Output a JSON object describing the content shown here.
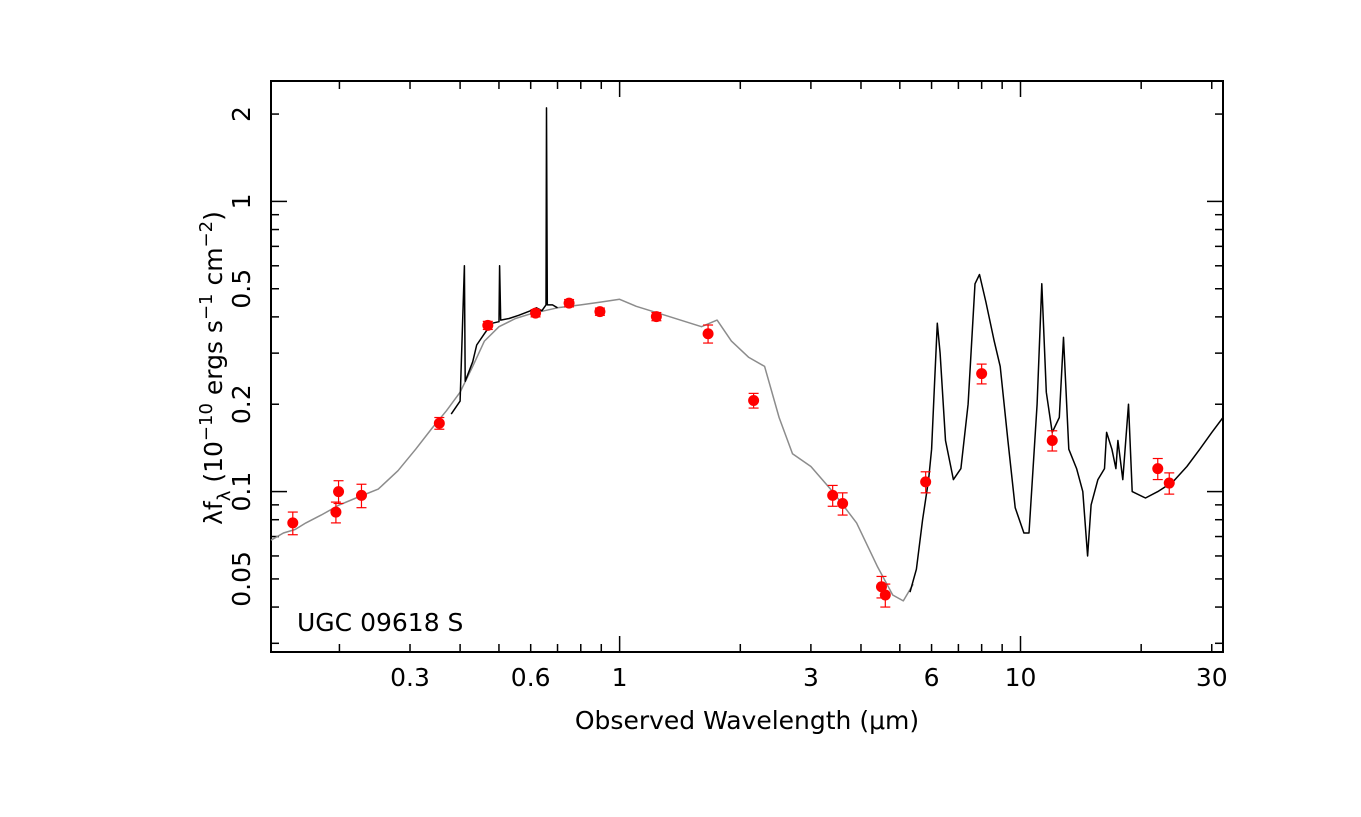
{
  "chart_data": {
    "type": "scatter",
    "xlabel": "Observed Wavelength (μm)",
    "ylabel_parts": {
      "lambda": "λ",
      "f": "f",
      "f_sub": "λ",
      "open": " (10",
      "exp1": "−10",
      "mid": " ergs s",
      "exp2": "−1",
      "cm": " cm",
      "exp3": "−2",
      "close": ")"
    },
    "annotation": "UGC 09618 S",
    "x_scale": "log",
    "y_scale": "log",
    "xlim": [
      0.135,
      32
    ],
    "ylim": [
      0.028,
      2.6
    ],
    "x_ticks": [
      {
        "v": 0.3,
        "label": "0.3"
      },
      {
        "v": 0.6,
        "label": "0.6"
      },
      {
        "v": 1,
        "label": "1"
      },
      {
        "v": 3,
        "label": "3"
      },
      {
        "v": 6,
        "label": "6"
      },
      {
        "v": 10,
        "label": "10"
      },
      {
        "v": 30,
        "label": "30"
      }
    ],
    "y_ticks": [
      {
        "v": 0.05,
        "label": "0.05"
      },
      {
        "v": 0.1,
        "label": "0.1"
      },
      {
        "v": 0.2,
        "label": "0.2"
      },
      {
        "v": 0.5,
        "label": "0.5"
      },
      {
        "v": 1,
        "label": "1"
      },
      {
        "v": 2,
        "label": "2"
      }
    ],
    "colors": {
      "frame": "#000000",
      "points": "#ff0000",
      "model": "#8c8c8c",
      "spectrum": "#000000"
    },
    "photometry": [
      {
        "x": 0.153,
        "y": 0.078,
        "err": 0.007
      },
      {
        "x": 0.196,
        "y": 0.085,
        "err": 0.007
      },
      {
        "x": 0.199,
        "y": 0.1,
        "err": 0.009
      },
      {
        "x": 0.227,
        "y": 0.097,
        "err": 0.009
      },
      {
        "x": 0.355,
        "y": 0.172,
        "err": 0.008
      },
      {
        "x": 0.469,
        "y": 0.374,
        "err": 0.012
      },
      {
        "x": 0.617,
        "y": 0.412,
        "err": 0.012
      },
      {
        "x": 0.748,
        "y": 0.446,
        "err": 0.013
      },
      {
        "x": 0.893,
        "y": 0.417,
        "err": 0.012
      },
      {
        "x": 1.235,
        "y": 0.401,
        "err": 0.013
      },
      {
        "x": 1.662,
        "y": 0.35,
        "err": 0.025
      },
      {
        "x": 2.159,
        "y": 0.206,
        "err": 0.012
      },
      {
        "x": 3.4,
        "y": 0.097,
        "err": 0.008
      },
      {
        "x": 3.6,
        "y": 0.091,
        "err": 0.008
      },
      {
        "x": 4.5,
        "y": 0.047,
        "err": 0.004
      },
      {
        "x": 4.6,
        "y": 0.044,
        "err": 0.004
      },
      {
        "x": 5.8,
        "y": 0.108,
        "err": 0.009
      },
      {
        "x": 8.0,
        "y": 0.255,
        "err": 0.02
      },
      {
        "x": 12.0,
        "y": 0.15,
        "err": 0.012
      },
      {
        "x": 22.0,
        "y": 0.12,
        "err": 0.01
      },
      {
        "x": 23.5,
        "y": 0.107,
        "err": 0.009
      }
    ],
    "model_sed": [
      [
        0.135,
        0.068
      ],
      [
        0.145,
        0.072
      ],
      [
        0.155,
        0.074
      ],
      [
        0.165,
        0.078
      ],
      [
        0.18,
        0.083
      ],
      [
        0.2,
        0.09
      ],
      [
        0.22,
        0.095
      ],
      [
        0.25,
        0.102
      ],
      [
        0.28,
        0.118
      ],
      [
        0.31,
        0.14
      ],
      [
        0.34,
        0.165
      ],
      [
        0.37,
        0.19
      ],
      [
        0.4,
        0.22
      ],
      [
        0.43,
        0.27
      ],
      [
        0.46,
        0.33
      ],
      [
        0.5,
        0.37
      ],
      [
        0.55,
        0.395
      ],
      [
        0.6,
        0.41
      ],
      [
        0.7,
        0.43
      ],
      [
        0.8,
        0.44
      ],
      [
        0.9,
        0.45
      ],
      [
        1.0,
        0.46
      ],
      [
        1.1,
        0.435
      ],
      [
        1.3,
        0.405
      ],
      [
        1.6,
        0.37
      ],
      [
        1.75,
        0.39
      ],
      [
        1.9,
        0.33
      ],
      [
        2.1,
        0.29
      ],
      [
        2.3,
        0.27
      ],
      [
        2.5,
        0.18
      ],
      [
        2.7,
        0.135
      ],
      [
        3.0,
        0.122
      ],
      [
        3.4,
        0.1
      ],
      [
        3.9,
        0.078
      ],
      [
        4.4,
        0.055
      ],
      [
        4.8,
        0.044
      ],
      [
        5.1,
        0.042
      ],
      [
        5.4,
        0.048
      ]
    ],
    "optical_spectrum": [
      [
        0.38,
        0.185
      ],
      [
        0.4,
        0.205
      ],
      [
        0.41,
        0.6
      ],
      [
        0.412,
        0.24
      ],
      [
        0.43,
        0.28
      ],
      [
        0.44,
        0.32
      ],
      [
        0.46,
        0.35
      ],
      [
        0.48,
        0.38
      ],
      [
        0.5,
        0.385
      ],
      [
        0.502,
        0.6
      ],
      [
        0.505,
        0.39
      ],
      [
        0.53,
        0.395
      ],
      [
        0.56,
        0.405
      ],
      [
        0.6,
        0.42
      ],
      [
        0.62,
        0.43
      ],
      [
        0.64,
        0.42
      ],
      [
        0.655,
        0.44
      ],
      [
        0.657,
        2.1
      ],
      [
        0.66,
        0.44
      ],
      [
        0.68,
        0.44
      ],
      [
        0.7,
        0.43
      ]
    ],
    "ir_spectrum": [
      [
        5.3,
        0.045
      ],
      [
        5.5,
        0.054
      ],
      [
        5.7,
        0.08
      ],
      [
        5.9,
        0.11
      ],
      [
        6.0,
        0.14
      ],
      [
        6.1,
        0.23
      ],
      [
        6.2,
        0.38
      ],
      [
        6.3,
        0.3
      ],
      [
        6.5,
        0.15
      ],
      [
        6.8,
        0.11
      ],
      [
        7.1,
        0.12
      ],
      [
        7.4,
        0.2
      ],
      [
        7.7,
        0.52
      ],
      [
        7.9,
        0.56
      ],
      [
        8.2,
        0.45
      ],
      [
        8.6,
        0.33
      ],
      [
        8.9,
        0.27
      ],
      [
        9.3,
        0.15
      ],
      [
        9.7,
        0.088
      ],
      [
        10.2,
        0.072
      ],
      [
        10.5,
        0.072
      ],
      [
        11.0,
        0.2
      ],
      [
        11.3,
        0.52
      ],
      [
        11.6,
        0.22
      ],
      [
        12.0,
        0.16
      ],
      [
        12.5,
        0.18
      ],
      [
        12.8,
        0.34
      ],
      [
        13.2,
        0.14
      ],
      [
        13.8,
        0.12
      ],
      [
        14.3,
        0.1
      ],
      [
        14.7,
        0.06
      ],
      [
        15.0,
        0.09
      ],
      [
        15.6,
        0.11
      ],
      [
        16.2,
        0.12
      ],
      [
        16.4,
        0.16
      ],
      [
        16.9,
        0.14
      ],
      [
        17.3,
        0.12
      ],
      [
        17.5,
        0.15
      ],
      [
        18.0,
        0.11
      ],
      [
        18.6,
        0.2
      ],
      [
        19.0,
        0.1
      ],
      [
        20.5,
        0.095
      ],
      [
        22.0,
        0.1
      ],
      [
        24.0,
        0.108
      ],
      [
        26.0,
        0.122
      ],
      [
        28.0,
        0.14
      ],
      [
        30.0,
        0.16
      ],
      [
        32.0,
        0.18
      ]
    ]
  }
}
